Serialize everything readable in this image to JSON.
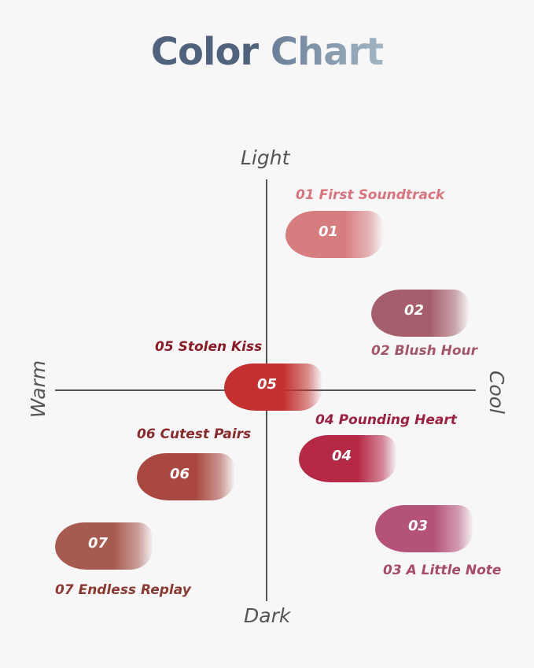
{
  "title": {
    "word1": "Color",
    "word2": "Chart"
  },
  "axes": {
    "top": "Light",
    "bottom": "Dark",
    "left": "Warm",
    "right": "Cool"
  },
  "shades": [
    {
      "num": "01",
      "label": "01 First Soundtrack",
      "color": "#d67d80",
      "label_color": "#d9737d"
    },
    {
      "num": "02",
      "label": "02 Blush Hour",
      "color": "#a55f6c",
      "label_color": "#a5566a"
    },
    {
      "num": "03",
      "label": "03 A Little Note",
      "color": "#b5527a",
      "label_color": "#a84a6c"
    },
    {
      "num": "04",
      "label": "04 Pounding Heart",
      "color": "#b52846",
      "label_color": "#9e2040"
    },
    {
      "num": "05",
      "label": "05 Stolen Kiss",
      "color": "#c3302f",
      "label_color": "#8a1a26"
    },
    {
      "num": "06",
      "label": "06 Cutest Pairs",
      "color": "#a94840",
      "label_color": "#8a2a2c"
    },
    {
      "num": "07",
      "label": "07 Endless Replay",
      "color": "#a75a4f",
      "label_color": "#8a3a32"
    }
  ]
}
